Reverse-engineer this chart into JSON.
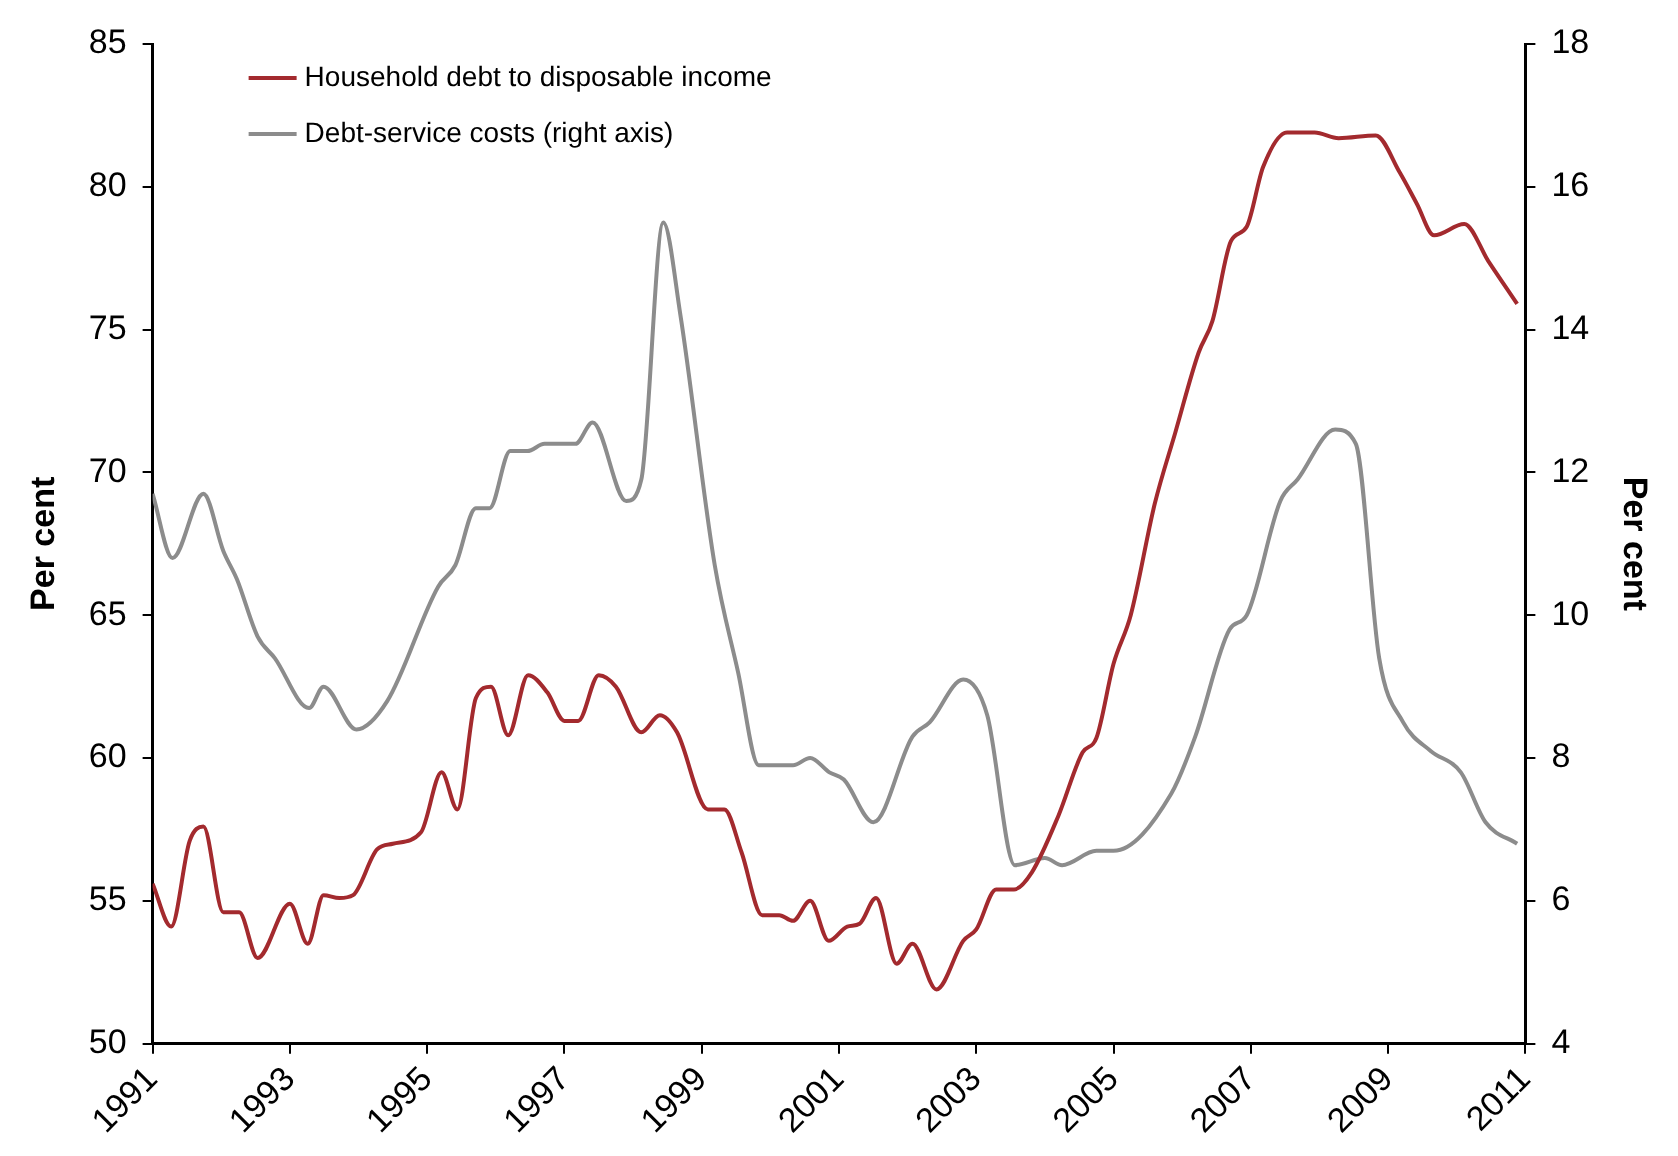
{
  "chart_data": {
    "type": "line",
    "ylabel": "Per cent",
    "y2label": "Per cent",
    "xlim": [
      1991,
      2011
    ],
    "xticks": [
      1991,
      1993,
      1995,
      1997,
      1999,
      2001,
      2003,
      2005,
      2007,
      2009,
      2011
    ],
    "ylim": [
      50,
      85
    ],
    "yticks": [
      50,
      55,
      60,
      65,
      70,
      75,
      80,
      85
    ],
    "y2lim": [
      4,
      18
    ],
    "y2ticks": [
      4,
      6,
      8,
      10,
      12,
      14,
      16,
      18
    ],
    "legend": "top left",
    "series": [
      {
        "name": "Household debt to disposable income",
        "color": "#a32a2e",
        "x": [
          1991.0,
          1991.27,
          1991.54,
          1991.74,
          1992.03,
          1992.26,
          1992.53,
          1993.0,
          1993.26,
          1993.49,
          1993.72,
          1993.92,
          1994.27,
          1994.5,
          1994.91,
          1995.21,
          1995.44,
          1995.71,
          1995.93,
          1996.18,
          1996.47,
          1996.75,
          1997.0,
          1997.2,
          1997.5,
          1997.75,
          1998.12,
          1998.39,
          1998.64,
          1999.09,
          1999.33,
          1999.58,
          1999.88,
          2000.13,
          2000.33,
          2000.58,
          2000.85,
          2001.12,
          2001.3,
          2001.54,
          2001.84,
          2002.07,
          2002.42,
          2002.81,
          2003.0,
          2003.29,
          2003.55,
          2003.81,
          2004.2,
          2004.55,
          2004.75,
          2005.0,
          2005.25,
          2005.6,
          2005.9,
          2006.24,
          2006.44,
          2006.71,
          2006.94,
          2007.18,
          2007.53,
          2007.93,
          2008.28,
          2008.82,
          2009.17,
          2009.42,
          2009.67,
          2010.11,
          2010.46,
          2010.88
        ],
        "values": [
          55.6,
          54.1,
          57.1,
          57.6,
          54.6,
          54.6,
          53.0,
          54.9,
          53.5,
          55.2,
          55.1,
          55.2,
          56.8,
          57.0,
          57.4,
          59.5,
          58.2,
          62.1,
          62.5,
          60.8,
          62.9,
          62.3,
          61.3,
          61.3,
          62.9,
          62.5,
          60.9,
          61.5,
          60.9,
          58.2,
          58.2,
          56.7,
          54.5,
          54.5,
          54.3,
          55.0,
          53.6,
          54.1,
          54.2,
          55.1,
          52.8,
          53.5,
          51.9,
          53.6,
          54.0,
          55.4,
          55.4,
          56.0,
          58.0,
          60.2,
          60.7,
          63.3,
          65.0,
          68.9,
          71.4,
          74.2,
          75.3,
          78.1,
          78.6,
          80.7,
          81.9,
          81.9,
          81.7,
          81.8,
          80.5,
          79.4,
          78.3,
          78.7,
          77.4,
          75.9
        ]
      },
      {
        "name": "Debt-service costs (right axis)",
        "color": "#8c8c8c",
        "axis": "y2",
        "x": [
          1991.0,
          1991.29,
          1991.74,
          1992.03,
          1992.23,
          1992.53,
          1992.78,
          1993.28,
          1993.49,
          1993.97,
          1994.42,
          1995.16,
          1995.41,
          1995.71,
          1995.91,
          1996.21,
          1996.46,
          1996.71,
          1997.16,
          1997.41,
          1997.9,
          1998.12,
          1998.44,
          1998.69,
          1999.19,
          1999.53,
          1999.83,
          2000.1,
          2000.33,
          2000.58,
          2000.86,
          2001.07,
          2001.5,
          2002.07,
          2002.32,
          2002.81,
          2003.16,
          2003.56,
          2004.0,
          2004.25,
          2004.75,
          2005.0,
          2005.84,
          2006.19,
          2006.69,
          2006.94,
          2007.43,
          2007.68,
          2008.23,
          2008.53,
          2008.87,
          2009.22,
          2009.62,
          2010.06,
          2010.42,
          2010.88
        ],
        "values": [
          11.7,
          10.8,
          11.7,
          10.9,
          10.5,
          9.7,
          9.4,
          8.7,
          9.0,
          8.4,
          8.8,
          10.4,
          10.7,
          11.5,
          11.5,
          12.3,
          12.3,
          12.4,
          12.4,
          12.7,
          11.6,
          11.9,
          15.5,
          14.2,
          10.7,
          9.2,
          7.9,
          7.9,
          7.9,
          8.0,
          7.8,
          7.7,
          7.1,
          8.3,
          8.5,
          9.1,
          8.6,
          6.5,
          6.6,
          6.5,
          6.7,
          6.7,
          7.5,
          8.3,
          9.8,
          10.0,
          11.6,
          11.9,
          12.6,
          12.4,
          9.4,
          8.5,
          8.1,
          7.8,
          7.1,
          6.8
        ]
      }
    ]
  }
}
